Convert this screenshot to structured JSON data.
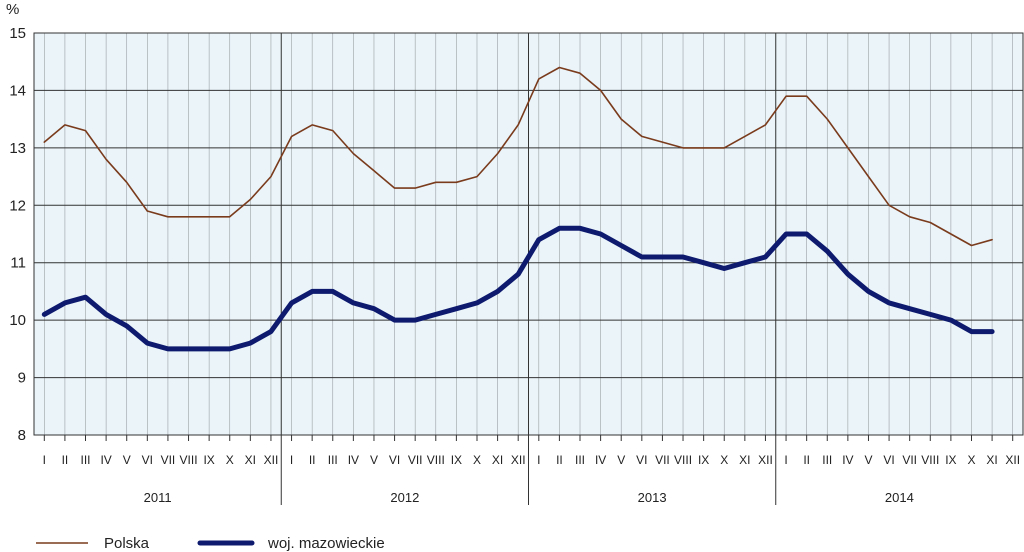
{
  "chart_data": {
    "type": "line",
    "unit_label": "%",
    "ylim": [
      8,
      15
    ],
    "y_ticks": [
      "8",
      "9",
      "10",
      "11",
      "12",
      "13",
      "14",
      "15"
    ],
    "grid": true,
    "legend_position": "bottom-left",
    "month_labels": [
      "I",
      "II",
      "III",
      "IV",
      "V",
      "VI",
      "VII",
      "VIII",
      "IX",
      "X",
      "XI",
      "XII"
    ],
    "years": [
      "2011",
      "2012",
      "2013",
      "2014"
    ],
    "x_count": 47,
    "colors": {
      "plot_bg": "#eaf4f9",
      "polska": "#7a3b1c",
      "mazowieckie": "#0d1a6e"
    },
    "series": [
      {
        "name": "Polska",
        "values": [
          13.1,
          13.4,
          13.3,
          12.8,
          12.4,
          11.9,
          11.8,
          11.8,
          11.8,
          11.8,
          12.1,
          12.5,
          13.2,
          13.4,
          13.3,
          12.9,
          12.6,
          12.3,
          12.3,
          12.4,
          12.4,
          12.5,
          12.9,
          13.4,
          14.2,
          14.4,
          14.3,
          14.0,
          13.5,
          13.2,
          13.1,
          13.0,
          13.0,
          13.0,
          13.2,
          13.4,
          13.9,
          13.9,
          13.5,
          13.0,
          12.5,
          12.0,
          11.8,
          11.7,
          11.5,
          11.3,
          11.4
        ]
      },
      {
        "name": "woj. mazowieckie",
        "values": [
          10.1,
          10.3,
          10.4,
          10.1,
          9.9,
          9.6,
          9.5,
          9.5,
          9.5,
          9.5,
          9.6,
          9.8,
          10.3,
          10.5,
          10.5,
          10.3,
          10.2,
          10.0,
          10.0,
          10.1,
          10.2,
          10.3,
          10.5,
          10.8,
          11.4,
          11.6,
          11.6,
          11.5,
          11.3,
          11.1,
          11.1,
          11.1,
          11.0,
          10.9,
          11.0,
          11.1,
          11.5,
          11.5,
          11.2,
          10.8,
          10.5,
          10.3,
          10.2,
          10.1,
          10.0,
          9.8,
          9.8
        ]
      }
    ]
  }
}
